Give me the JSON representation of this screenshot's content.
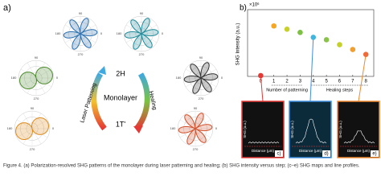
{
  "panel_a": {
    "label": "a)",
    "phase_top": "2H",
    "center": "Monolayer",
    "phase_bottom": "1T'",
    "arrow_left": "Laser Patterning",
    "arrow_right": "Healing",
    "angle_labels": [
      "90",
      "180",
      "270",
      "0"
    ]
  },
  "chart_data": {
    "type": "scatter",
    "label": "b)",
    "y_label": "SHG Intensity (a.u.)",
    "y_multiplier": "×10⁶",
    "x": [
      0,
      1,
      2,
      3,
      4,
      5,
      6,
      7,
      8
    ],
    "values": [
      0.1,
      6.2,
      5.8,
      5.4,
      4.8,
      4.5,
      3.9,
      3.3,
      2.7
    ],
    "colors": [
      "#e53935",
      "#f5a623",
      "#c8d12a",
      "#7cc242",
      "#3fb6e0",
      "#8bc34a",
      "#c6d02b",
      "#f0a030",
      "#ef6c3a"
    ],
    "xlim": [
      -1,
      8.6
    ],
    "xticks": [
      0,
      1,
      2,
      3,
      4,
      5,
      6,
      7,
      8
    ],
    "ylim": [
      0,
      8.2
    ],
    "annotations": [
      "Number of patterning",
      "Healing steps"
    ]
  },
  "insets": [
    {
      "label": "c)"
    },
    {
      "label": "d)"
    },
    {
      "label": "e)"
    }
  ],
  "inset_y_label": "SHG (a.u.)",
  "inset_x_label": "Distance (μm)",
  "caption": "Figure 4. (a) Polarization-resolved SHG patterns of the monolayer during laser patterning and healing; (b) SHG intensity versus step; (c–e) SHG maps and line profiles."
}
